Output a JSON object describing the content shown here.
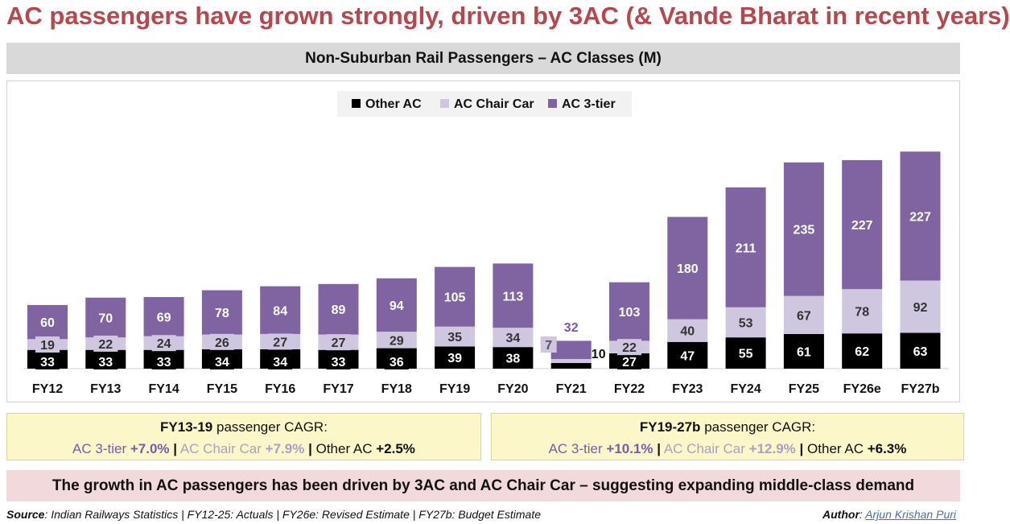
{
  "title": "AC passengers have grown strongly, driven by 3AC (& Vande Bharat in recent years)",
  "chart_title": "Non-Suburban Rail Passengers – AC Classes (M)",
  "colors": {
    "other_ac": "#000000",
    "chair_car": "#cfc6e0",
    "three_tier": "#8064a2",
    "title": "#b5474d"
  },
  "chart_data": {
    "type": "bar",
    "stacked": true,
    "title": "Non-Suburban Rail Passengers – AC Classes (M)",
    "categories": [
      "FY12",
      "FY13",
      "FY14",
      "FY15",
      "FY16",
      "FY17",
      "FY18",
      "FY19",
      "FY20",
      "FY21",
      "FY22",
      "FY23",
      "FY24",
      "FY25",
      "FY26e",
      "FY27b"
    ],
    "series": [
      {
        "name": "Other AC",
        "values": [
          33,
          33,
          33,
          34,
          34,
          33,
          36,
          39,
          38,
          10,
          27,
          47,
          55,
          61,
          62,
          63
        ]
      },
      {
        "name": "AC Chair Car",
        "values": [
          19,
          22,
          24,
          26,
          27,
          27,
          29,
          35,
          34,
          7,
          22,
          40,
          53,
          67,
          78,
          92
        ]
      },
      {
        "name": "AC 3-tier",
        "values": [
          60,
          70,
          69,
          78,
          84,
          89,
          94,
          105,
          113,
          32,
          103,
          180,
          211,
          235,
          227,
          227
        ]
      }
    ],
    "legend_position": "top-center",
    "xlabel": "",
    "ylabel": ""
  },
  "cagr": [
    {
      "period": "FY13-19",
      "label": "passenger CAGR:",
      "three_tier_name": "AC 3-tier",
      "three_tier_value": "+7.0%",
      "chair_name": "AC Chair Car",
      "chair_value": "+7.9%",
      "other_name": "Other AC",
      "other_value": "+2.5%"
    },
    {
      "period": "FY19-27b",
      "label": "passenger CAGR:",
      "three_tier_name": "AC 3-tier",
      "three_tier_value": "+10.1%",
      "chair_name": "AC Chair Car",
      "chair_value": "+12.9%",
      "other_name": "Other AC",
      "other_value": "+6.3%"
    }
  ],
  "separator": "|",
  "conclusion": "The growth in AC passengers has been driven by 3AC and AC Chair Car – suggesting expanding middle-class demand",
  "footer": {
    "source_label": "Source",
    "source_text": ": Indian Railways Statistics | FY12-25: Actuals | FY26e: Revised Estimate | FY27b: Budget Estimate",
    "author_label": "Author",
    "author_sep": ":",
    "author_name": "Arjun Krishan Puri"
  }
}
